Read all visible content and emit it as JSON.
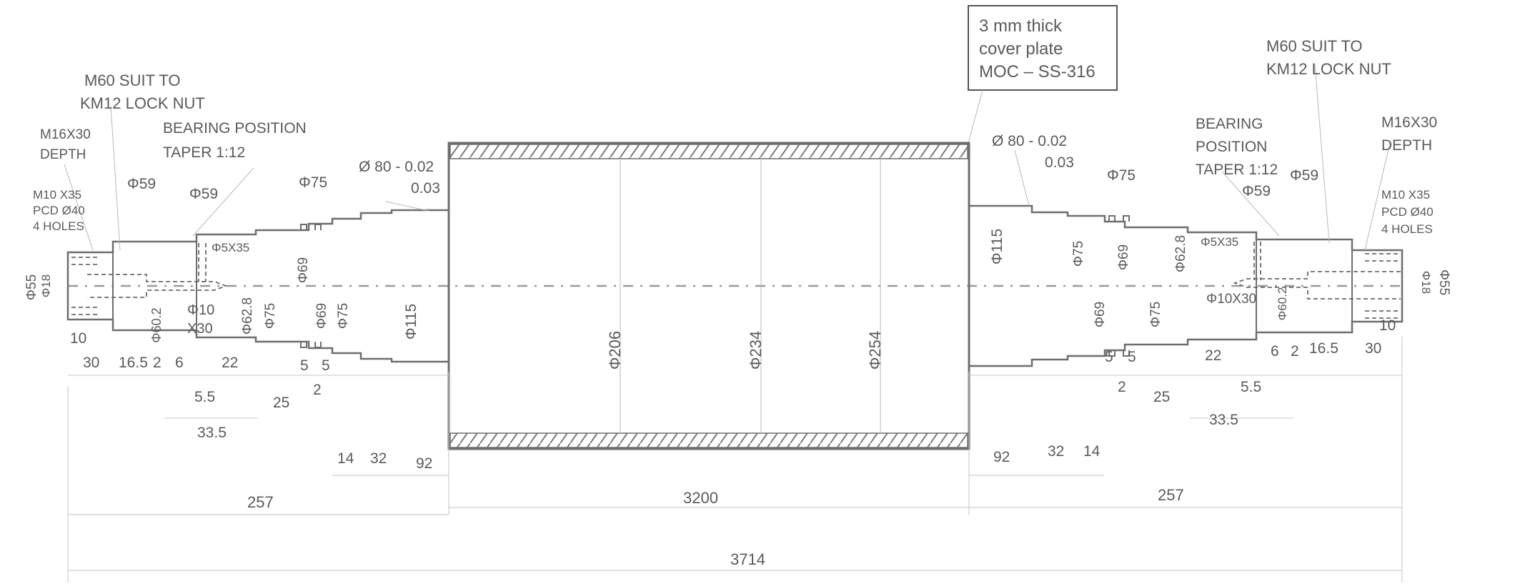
{
  "title_box": {
    "lines": [
      "3 mm thick",
      "cover plate",
      "MOC – SS-316"
    ]
  },
  "colors": {
    "outline": "#6e6e6e",
    "text": "#5a5a5a",
    "dim_line": "#c6c6c6",
    "hatch": "#7a7a7a"
  },
  "left_notes": {
    "lock_nut": [
      "M60 SUIT TO",
      "KM12 LOCK NUT"
    ],
    "thread": [
      "M16X30",
      "DEPTH"
    ],
    "bearing": [
      "BEARING POSITION",
      "TAPER 1:12"
    ],
    "holes": [
      "M10 X35",
      "PCD Ø40",
      "4 HOLES"
    ],
    "tolerance": [
      "Ø 80 - 0.02",
      "0.03"
    ],
    "hole2": [
      "Φ10",
      "X30"
    ]
  },
  "right_notes": {
    "lock_nut": [
      "M60  SUIT TO",
      "KM12 LOCK NUT"
    ],
    "thread": [
      "M16X30",
      "DEPTH"
    ],
    "bearing": [
      "BEARING",
      "POSITION",
      "TAPER 1:12"
    ],
    "holes": [
      "M10 X35",
      "PCD Ø40",
      "4 HOLES"
    ],
    "tolerance": [
      "Ø 80 - 0.02",
      "0.03"
    ],
    "hole2": "Φ10X30"
  },
  "left_diameters": {
    "d55": "Φ55",
    "d18": "Φ18",
    "d59a": "Φ59",
    "d59b": "Φ59",
    "d5x35": "Φ5X35",
    "d60_2": "Φ60.2",
    "d62_8": "Φ62.8",
    "d75a": "Φ75",
    "d75b": "Φ75",
    "d69a": "Φ69",
    "d69b": "Φ69",
    "d75c": "Φ75",
    "d115": "Φ115"
  },
  "drum_diameters": {
    "d206": "Φ206",
    "d234": "Φ234",
    "d254": "Φ254"
  },
  "right_diameters": {
    "d115": "Φ115",
    "d75a": "Φ75",
    "d69a": "Φ69",
    "d75b": "Φ75",
    "d69b": "Φ69",
    "d75c": "Φ75",
    "d62_8": "Φ62.8",
    "d5x35": "Φ5X35",
    "d59a": "Φ59",
    "d59b": "Φ59",
    "d60_2": "Φ60.2",
    "d18": "Φ18",
    "d55": "Φ55"
  },
  "left_lengths": {
    "l10": "10",
    "l30": "30",
    "l16_5": "16.5",
    "l2": "2",
    "l6": "6",
    "l22": "22",
    "l5a": "5",
    "l5b": "5",
    "l2b": "2",
    "l5_5": "5.5",
    "l25": "25",
    "l33_5": "33.5",
    "l14": "14",
    "l32": "32",
    "l92": "92"
  },
  "right_lengths": {
    "l92": "92",
    "l32": "32",
    "l14": "14",
    "l5a": "5",
    "l5b": "5",
    "l2": "2",
    "l25": "25",
    "l22": "22",
    "l6": "6",
    "l2b": "2",
    "l16_5": "16.5",
    "l30": "30",
    "l10": "10",
    "l5_5": "5.5",
    "l33_5": "33.5"
  },
  "overall": {
    "left_257": "257",
    "drum_3200": "3200",
    "right_257": "257",
    "total_3714": "3714"
  }
}
